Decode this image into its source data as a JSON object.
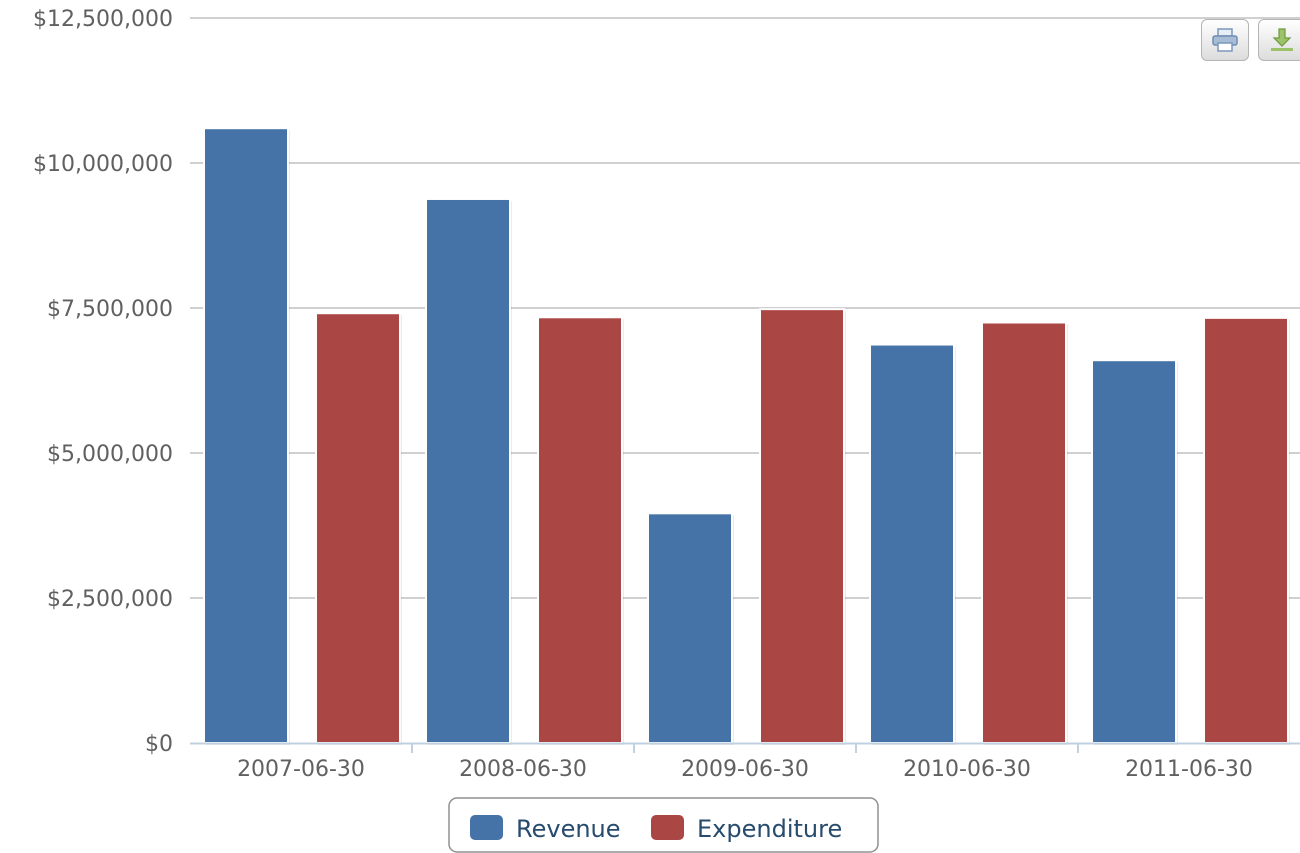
{
  "colors": {
    "revenue": "#4572a7",
    "expenditure": "#aa4643",
    "gridline": "#c0c0c0",
    "axis": "#c0d0e0",
    "tick_text": "#606060",
    "legend_text": "#274b6d",
    "legend_border": "#909090"
  },
  "toolbar": {
    "print_icon": "printer-icon",
    "download_icon": "download-icon"
  },
  "chart_data": {
    "type": "bar",
    "categories": [
      "2007-06-30",
      "2008-06-30",
      "2009-06-30",
      "2010-06-30",
      "2011-06-30"
    ],
    "series": [
      {
        "name": "Revenue",
        "color": "#4572a7",
        "values": [
          10600000,
          9380000,
          3960000,
          6870000,
          6600000
        ]
      },
      {
        "name": "Expenditure",
        "color": "#aa4643",
        "values": [
          7410000,
          7340000,
          7480000,
          7250000,
          7330000
        ]
      }
    ],
    "ylim": [
      0,
      12500000
    ],
    "yticks": [
      0,
      2500000,
      5000000,
      7500000,
      10000000,
      12500000
    ],
    "ytick_labels": [
      "$0",
      "$2,500,000",
      "$5,000,000",
      "$7,500,000",
      "$10,000,000",
      "$12,500,000"
    ],
    "grid": true,
    "legend_position": "bottom-center"
  }
}
